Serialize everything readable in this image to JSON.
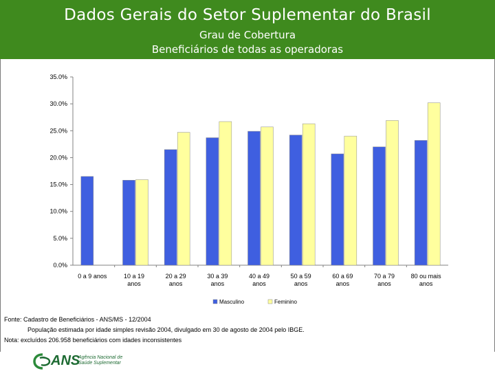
{
  "header": {
    "title": "Dados Gerais do Setor Suplementar do Brasil",
    "subtitle1": "Grau de Cobertura",
    "subtitle2": "Beneficiários de todas as operadoras"
  },
  "chart_data": {
    "type": "bar",
    "categories": [
      [
        "0 a 9 anos"
      ],
      [
        "10 a 19",
        "anos"
      ],
      [
        "20 a 29",
        "anos"
      ],
      [
        "30 a 39",
        "anos"
      ],
      [
        "40 a 49",
        "anos"
      ],
      [
        "50 a 59",
        "anos"
      ],
      [
        "60 a 69",
        "anos"
      ],
      [
        "70 a 79",
        "anos"
      ],
      [
        "80 ou mais",
        "anos"
      ]
    ],
    "series": [
      {
        "name": "Masculino",
        "color": "#3f5fe0",
        "values": [
          16.5,
          15.8,
          21.5,
          23.7,
          24.9,
          24.2,
          20.7,
          22.0,
          23.2
        ]
      },
      {
        "name": "Feminino",
        "color": "#ffff9e",
        "values": [
          null,
          15.9,
          24.7,
          26.7,
          25.7,
          26.3,
          24.0,
          26.9,
          30.2
        ]
      }
    ],
    "yticks": [
      "0.0%",
      "5.0%",
      "10.0%",
      "15.0%",
      "20.0%",
      "25.0%",
      "30.0%",
      "35.0%"
    ],
    "ylim": [
      0,
      35
    ],
    "legend": [
      "Masculino",
      "Feminino"
    ],
    "legend_position": "bottom"
  },
  "notes": {
    "source": "Fonte: Cadastro de Beneficiários - ANS/MS - 12/2004",
    "population": "População estimada por idade simples revisão 2004, divulgado em 30 de agosto de 2004 pelo IBGE.",
    "nota": "Nota: excluídos 206.958 beneficiários com idades inconsistentes"
  },
  "footer": {
    "brand": "ANS",
    "tagline": "Agência Nacional de Saúde Suplementar"
  }
}
